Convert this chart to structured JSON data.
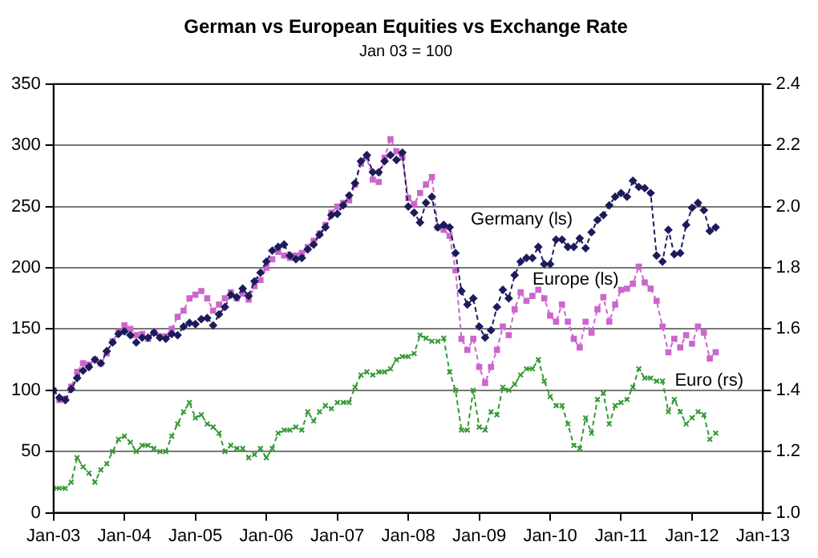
{
  "chart_data": {
    "type": "line",
    "title": "German vs European Equities vs Exchange Rate",
    "subtitle": "Jan 03 = 100",
    "x": [
      "2003-01",
      "2003-02",
      "2003-03",
      "2003-04",
      "2003-05",
      "2003-06",
      "2003-07",
      "2003-08",
      "2003-09",
      "2003-10",
      "2003-11",
      "2003-12",
      "2004-01",
      "2004-02",
      "2004-03",
      "2004-04",
      "2004-05",
      "2004-06",
      "2004-07",
      "2004-08",
      "2004-09",
      "2004-10",
      "2004-11",
      "2004-12",
      "2005-01",
      "2005-02",
      "2005-03",
      "2005-04",
      "2005-05",
      "2005-06",
      "2005-07",
      "2005-08",
      "2005-09",
      "2005-10",
      "2005-11",
      "2005-12",
      "2006-01",
      "2006-02",
      "2006-03",
      "2006-04",
      "2006-05",
      "2006-06",
      "2006-07",
      "2006-08",
      "2006-09",
      "2006-10",
      "2006-11",
      "2006-12",
      "2007-01",
      "2007-02",
      "2007-03",
      "2007-04",
      "2007-05",
      "2007-06",
      "2007-07",
      "2007-08",
      "2007-09",
      "2007-10",
      "2007-11",
      "2007-12",
      "2008-01",
      "2008-02",
      "2008-03",
      "2008-04",
      "2008-05",
      "2008-06",
      "2008-07",
      "2008-08",
      "2008-09",
      "2008-10",
      "2008-11",
      "2008-12",
      "2009-01",
      "2009-02",
      "2009-03",
      "2009-04",
      "2009-05",
      "2009-06",
      "2009-07",
      "2009-08",
      "2009-09",
      "2009-10",
      "2009-11",
      "2009-12",
      "2010-01",
      "2010-02",
      "2010-03",
      "2010-04",
      "2010-05",
      "2010-06",
      "2010-07",
      "2010-08",
      "2010-09",
      "2010-10",
      "2010-11",
      "2010-12",
      "2011-01",
      "2011-02",
      "2011-03",
      "2011-04",
      "2011-05",
      "2011-06",
      "2011-07",
      "2011-08",
      "2011-09",
      "2011-10",
      "2011-11",
      "2011-12",
      "2012-01",
      "2012-02",
      "2012-03",
      "2012-04",
      "2012-05"
    ],
    "series": [
      {
        "name": "Germany (ls)",
        "color": "#1c1c5c",
        "marker": "diamond",
        "values": [
          100,
          94,
          92,
          101,
          110,
          116,
          119,
          125,
          122,
          132,
          139,
          146,
          148,
          145,
          139,
          143,
          143,
          147,
          143,
          142,
          146,
          145,
          152,
          155,
          154,
          158,
          159,
          153,
          162,
          168,
          178,
          176,
          183,
          177,
          189,
          196,
          205,
          214,
          217,
          219,
          210,
          207,
          208,
          215,
          219,
          227,
          233,
          243,
          244,
          251,
          259,
          269,
          287,
          292,
          278,
          278,
          287,
          292,
          288,
          294,
          250,
          245,
          237,
          253,
          258,
          233,
          235,
          233,
          212,
          181,
          170,
          175,
          152,
          143,
          149,
          168,
          182,
          175,
          194,
          205,
          208,
          208,
          217,
          203,
          203,
          223,
          223,
          217,
          217,
          224,
          216,
          229,
          239,
          243,
          251,
          258,
          261,
          258,
          271,
          266,
          265,
          261,
          210,
          205,
          231,
          211,
          212,
          235,
          249,
          253,
          247,
          230,
          233
        ]
      },
      {
        "name": "Europe (ls)",
        "color": "#cc66cc",
        "marker": "square",
        "values": [
          100,
          92,
          93,
          103,
          115,
          122,
          121,
          125,
          122,
          130,
          140,
          148,
          153,
          150,
          145,
          146,
          142,
          148,
          144,
          144,
          150,
          160,
          165,
          175,
          178,
          181,
          175,
          165,
          170,
          175,
          180,
          175,
          179,
          174,
          185,
          190,
          200,
          207,
          213,
          210,
          208,
          210,
          212,
          217,
          222,
          228,
          235,
          245,
          250,
          253,
          255,
          268,
          285,
          290,
          272,
          270,
          290,
          305,
          295,
          290,
          257,
          252,
          261,
          268,
          274,
          233,
          231,
          226,
          198,
          142,
          133,
          142,
          119,
          106,
          119,
          133,
          152,
          145,
          166,
          180,
          173,
          177,
          182,
          175,
          161,
          156,
          170,
          156,
          142,
          135,
          156,
          147,
          166,
          176,
          156,
          170,
          182,
          183,
          187,
          201,
          188,
          183,
          173,
          152,
          131,
          142,
          135,
          145,
          138,
          152,
          147,
          126,
          131
        ]
      },
      {
        "name": "Euro (rs)",
        "color": "#339933",
        "marker": "cross",
        "axis": "y2",
        "values": [
          1.08,
          1.08,
          1.08,
          1.1,
          1.18,
          1.15,
          1.13,
          1.1,
          1.14,
          1.16,
          1.2,
          1.24,
          1.25,
          1.23,
          1.2,
          1.22,
          1.22,
          1.21,
          1.2,
          1.2,
          1.25,
          1.29,
          1.33,
          1.36,
          1.31,
          1.32,
          1.29,
          1.28,
          1.26,
          1.2,
          1.22,
          1.21,
          1.21,
          1.18,
          1.19,
          1.21,
          1.18,
          1.21,
          1.26,
          1.27,
          1.27,
          1.28,
          1.27,
          1.33,
          1.3,
          1.33,
          1.35,
          1.34,
          1.36,
          1.36,
          1.36,
          1.41,
          1.45,
          1.46,
          1.45,
          1.46,
          1.46,
          1.47,
          1.5,
          1.51,
          1.51,
          1.52,
          1.58,
          1.57,
          1.56,
          1.56,
          1.57,
          1.46,
          1.4,
          1.27,
          1.27,
          1.4,
          1.28,
          1.27,
          1.33,
          1.32,
          1.41,
          1.4,
          1.42,
          1.45,
          1.47,
          1.47,
          1.5,
          1.43,
          1.38,
          1.35,
          1.35,
          1.29,
          1.22,
          1.21,
          1.31,
          1.26,
          1.37,
          1.39,
          1.29,
          1.35,
          1.36,
          1.37,
          1.41,
          1.47,
          1.44,
          1.44,
          1.43,
          1.43,
          1.33,
          1.37,
          1.33,
          1.29,
          1.31,
          1.33,
          1.32,
          1.24,
          1.26
        ]
      }
    ],
    "xlim": [
      "2003-01",
      "2013-01"
    ],
    "xticks": [
      {
        "value": "2003-01",
        "label": "Jan-03"
      },
      {
        "value": "2004-01",
        "label": "Jan-04"
      },
      {
        "value": "2005-01",
        "label": "Jan-05"
      },
      {
        "value": "2006-01",
        "label": "Jan-06"
      },
      {
        "value": "2007-01",
        "label": "Jan-07"
      },
      {
        "value": "2008-01",
        "label": "Jan-08"
      },
      {
        "value": "2009-01",
        "label": "Jan-09"
      },
      {
        "value": "2010-01",
        "label": "Jan-10"
      },
      {
        "value": "2011-01",
        "label": "Jan-11"
      },
      {
        "value": "2012-01",
        "label": "Jan-12"
      },
      {
        "value": "2013-01",
        "label": "Jan-13"
      }
    ],
    "ylim": [
      0,
      350
    ],
    "yticks": [
      0,
      50,
      100,
      150,
      200,
      250,
      300,
      350
    ],
    "y2lim": [
      1.0,
      2.4
    ],
    "y2ticks": [
      {
        "value": 1.0,
        "label": "1.0"
      },
      {
        "value": 1.2,
        "label": "1.2"
      },
      {
        "value": 1.4,
        "label": "1.4"
      },
      {
        "value": 1.6,
        "label": "1.6"
      },
      {
        "value": 1.8,
        "label": "1.8"
      },
      {
        "value": 2.0,
        "label": "2.0"
      },
      {
        "value": 2.2,
        "label": "2.2"
      },
      {
        "value": 2.4,
        "label": "2.4"
      }
    ],
    "grid": "y",
    "legend": false,
    "line_style": "dashed"
  }
}
